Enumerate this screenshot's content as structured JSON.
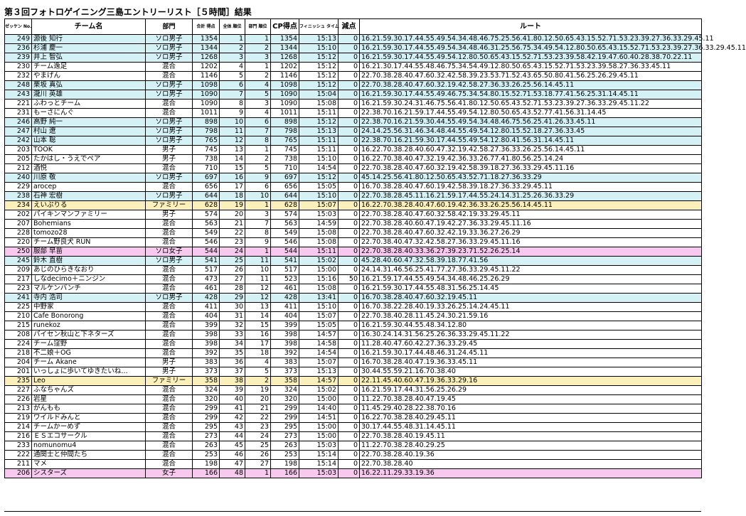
{
  "title": "第３回フォトロゲイニング三島エントリーリスト［５時間］結果",
  "headers": {
    "bib": "ゼッケン No.",
    "team": "チーム名",
    "category": "部門",
    "total": "合計 得点",
    "overall": "全体 順位",
    "division": "部門 順位",
    "cp": "CP得点",
    "finish": "フィニッシュ タイム",
    "penalty": "減点",
    "route": "ルート"
  },
  "rows": [
    [
      "249",
      "源後 知行",
      "ソロ男子",
      "1354",
      "1",
      "1",
      "1354",
      "15:13",
      "0",
      "16.21.59.30.17.44.55.49.54.34.48.46.75.25.56.41.80.12.50.65.43.15.52.71.53.23.39.27.36.33.29.45.11"
    ],
    [
      "236",
      "杉浦 慶一",
      "ソロ男子",
      "1344",
      "2",
      "2",
      "1344",
      "15:10",
      "0",
      "16.21.59.30.17.44.55.49.54.34.48.46.31.25.56.75.34.49.54.12.80.50.65.43.15.52.71.53.23.39.27.36.33.29.45.11"
    ],
    [
      "239",
      "井上 智弘",
      "ソロ男子",
      "1268",
      "3",
      "3",
      "1268",
      "15:12",
      "0",
      "16.21.59.30.17.44.55.49.54.12.80.50.65.43.15.52.71.53.23.39.58.42.19.47.60.40.28.38.70.22.11"
    ],
    [
      "230",
      "チーム逸足",
      "混合",
      "1202",
      "4",
      "1",
      "1202",
      "15:12",
      "0",
      "16.21.30.17.44.55.48.46.75.34.54.49.12.80.50.65.43.15.52.71.53.23.39.58.27.36.33.45.11"
    ],
    [
      "232",
      "やまげん",
      "混合",
      "1146",
      "5",
      "2",
      "1146",
      "15:12",
      "0",
      "22.70.38.28.40.47.60.32.42.58.39.23.53.71.52.43.65.50.80.41.56.25.26.29.45.11"
    ],
    [
      "248",
      "栗坂 真弘",
      "ソロ男子",
      "1098",
      "6",
      "4",
      "1098",
      "15:12",
      "0",
      "22.70.38.28.40.47.60.32.19.42.58.27.36.33.26.25.56.14.45.11"
    ],
    [
      "243",
      "瀧川 英雄",
      "ソロ男子",
      "1090",
      "7",
      "5",
      "1090",
      "15:04",
      "0",
      "16.21.59.30.17.44.55.49.46.75.34.54.80.15.52.71.53.18.77.41.56.25.31.14.45.11"
    ],
    [
      "221",
      "ふわっとチーム",
      "混合",
      "1090",
      "8",
      "3",
      "1090",
      "15:08",
      "0",
      "16.21.59.30.24.31.46.75.56.41.80.12.50.65.43.52.71.53.23.39.27.36.33.29.45.11.22"
    ],
    [
      "231",
      "もーさにんぐ",
      "混合",
      "1011",
      "9",
      "4",
      "1011",
      "15:11",
      "0",
      "22.38.70.16.21.59.17.44.55.49.54.12.80.50.65.43.52.77.41.56.31.14.45"
    ],
    [
      "246",
      "高野 純一",
      "ソロ男子",
      "898",
      "10",
      "6",
      "898",
      "15:12",
      "0",
      "22.38.70.16.21.59.30.44.55.49.54.34.48.46.75.56.25.41.26.33.45.11"
    ],
    [
      "247",
      "村山 遼",
      "ソロ男子",
      "798",
      "11",
      "7",
      "798",
      "15:13",
      "0",
      "24.14.25.56.31.46.34.48.44.55.49.54.12.80.15.52.18.27.36.33.45"
    ],
    [
      "242",
      "山本 聡",
      "ソロ男子",
      "765",
      "12",
      "8",
      "765",
      "15:11",
      "0",
      "22.38.70.16.21.59.30.17.44.55.49.54.12.80.41.56.31.14.45.11"
    ],
    [
      "203",
      "TOOK",
      "男子",
      "745",
      "13",
      "1",
      "745",
      "15:11",
      "0",
      "16.22.70.38.28.40.60.47.32.19.42.58.27.36.33.26.25.56.14.45.11"
    ],
    [
      "205",
      "たかはし・うえでペア",
      "男子",
      "738",
      "14",
      "2",
      "738",
      "15:10",
      "0",
      "16.22.70.38.40.47.32.19.42.36.33.26.77.41.80.56.25.14.24"
    ],
    [
      "212",
      "酒悦",
      "混合",
      "710",
      "15",
      "5",
      "710",
      "14:54",
      "0",
      "22.70.38.28.40.47.60.32.19.42.58.39.18.27.36.33.29.45.11.16"
    ],
    [
      "240",
      "川原 敬",
      "ソロ男子",
      "697",
      "16",
      "9",
      "697",
      "15:12",
      "0",
      "45.14.25.56.41.80.12.50.65.43.52.71.18.27.36.33.29"
    ],
    [
      "229",
      "arocep",
      "混合",
      "656",
      "17",
      "6",
      "656",
      "15:05",
      "0",
      "16.70.38.28.40.47.60.19.42.58.39.18.27.36.33.29.45.11"
    ],
    [
      "238",
      "石神 宏樹",
      "ソロ男子",
      "644",
      "18",
      "10",
      "644",
      "15:10",
      "0",
      "22.70.38.28.45.11.16.21.59.17.44.55.24.14.31.25.26.36.33.29"
    ],
    [
      "234",
      "えいぷりる",
      "ファミリー",
      "628",
      "19",
      "1",
      "628",
      "15:07",
      "0",
      "16.22.70.38.28.40.47.60.19.42.36.33.26.25.56.14.45.11"
    ],
    [
      "202",
      "パイキンマンファミリー",
      "男子",
      "574",
      "20",
      "3",
      "574",
      "15:03",
      "0",
      "22.70.38.28.40.47.60.32.58.42.19.33.29.45.11"
    ],
    [
      "207",
      "Bohemians",
      "混合",
      "563",
      "21",
      "7",
      "563",
      "14:59",
      "0",
      "22.70.38.28.40.60.47.19.42.27.36.33.29.45.11.16"
    ],
    [
      "228",
      "tomozo28",
      "混合",
      "549",
      "22",
      "8",
      "549",
      "15:08",
      "0",
      "22.70.38.28.40.47.60.32.42.19.33.36.27.26.29"
    ],
    [
      "220",
      "チーム野良犬 RUN",
      "混合",
      "546",
      "23",
      "9",
      "546",
      "15:08",
      "0",
      "22.70.38.40.47.32.42.58.27.36.33.29.45.11.16"
    ],
    [
      "250",
      "服部 早苗",
      "ソロ女子",
      "544",
      "24",
      "1",
      "544",
      "15:11",
      "0",
      "22.70.38.28.40.33.36.27.39.23.71.52.26.25.14"
    ],
    [
      "245",
      "鈴木 直樹",
      "ソロ男子",
      "541",
      "25",
      "11",
      "541",
      "15:02",
      "0",
      "45.28.40.60.47.32.58.39.18.77.41.56"
    ],
    [
      "209",
      "あじのひらきなおり",
      "混合",
      "517",
      "26",
      "10",
      "517",
      "15:00",
      "0",
      "24.14.31.46.56.25.41.77.27.36.33.29.45.11.22"
    ],
    [
      "217",
      "しなdecimo＋ニンジン",
      "混合",
      "473",
      "27",
      "11",
      "523",
      "15:16",
      "50",
      "16.21.59.17.44.55.49.54.34.48.46.25.26.29"
    ],
    [
      "223",
      "マルケンバンチ",
      "混合",
      "461",
      "28",
      "12",
      "461",
      "15:08",
      "0",
      "16.21.59.30.17.44.55.48.31.56.25.14.45"
    ],
    [
      "241",
      "寺内 浩司",
      "ソロ男子",
      "428",
      "29",
      "12",
      "428",
      "13:41",
      "0",
      "16.70.38.28.40.47.60.32.19.45.11"
    ],
    [
      "225",
      "中野家",
      "混合",
      "411",
      "30",
      "13",
      "411",
      "15:10",
      "0",
      "16.70.38.22.28.40.19.33.26.25.14.24.45.11"
    ],
    [
      "210",
      "Cafe Bonorong",
      "混合",
      "404",
      "31",
      "14",
      "404",
      "15:07",
      "0",
      "22.70.38.40.28.11.45.24.30.21.59.16"
    ],
    [
      "215",
      "runekoz",
      "混合",
      "399",
      "32",
      "15",
      "399",
      "15:05",
      "0",
      "16.21.59.30.44.55.48.34.12.80"
    ],
    [
      "208",
      "パイセン秋山と下ネターズ",
      "混合",
      "398",
      "33",
      "16",
      "398",
      "14:57",
      "0",
      "16.30.24.14.31.56.25.26.36.33.29.45.11.22"
    ],
    [
      "224",
      "チーム窪野",
      "混合",
      "398",
      "34",
      "17",
      "398",
      "14:58",
      "0",
      "11.28.40.47.60.42.27.36.33.29.45"
    ],
    [
      "218",
      "不二娘＋OG",
      "混合",
      "392",
      "35",
      "18",
      "392",
      "14:54",
      "0",
      "16.21.59.30.17.44.48.46.31.24.45.11"
    ],
    [
      "204",
      "チーム Akane",
      "男子",
      "383",
      "36",
      "4",
      "383",
      "15:07",
      "0",
      "16.70.38.28.40.47.19.36.33.45.11"
    ],
    [
      "201",
      "いっしょに歩いてゆきたいね…",
      "男子",
      "373",
      "37",
      "5",
      "373",
      "15:13",
      "0",
      "30.44.55.59.21.16.70.38.40"
    ],
    [
      "235",
      "Leo",
      "ファミリー",
      "358",
      "38",
      "2",
      "358",
      "14:57",
      "0",
      "22.11.45.40.60.47.19.36.33.29.16"
    ],
    [
      "227",
      "ふなちゃんズ",
      "混合",
      "324",
      "39",
      "19",
      "324",
      "15:02",
      "0",
      "16.21.59.17.44.31.56.25.26.29"
    ],
    [
      "226",
      "岩星",
      "混合",
      "320",
      "40",
      "20",
      "320",
      "15:00",
      "0",
      "11.22.70.38.28.40.47.19.45"
    ],
    [
      "213",
      "がんもも",
      "混合",
      "299",
      "41",
      "21",
      "299",
      "14:40",
      "0",
      "11.45.29.40.28.22.38.70.16"
    ],
    [
      "219",
      "ワイルドみんと",
      "混合",
      "299",
      "42",
      "22",
      "299",
      "14:51",
      "0",
      "16.22.70.38.28.40.29.45.11"
    ],
    [
      "214",
      "チームかーめず",
      "混合",
      "295",
      "43",
      "23",
      "295",
      "15:00",
      "0",
      "30.17.44.55.48.31.14.45.11"
    ],
    [
      "216",
      "ＥＳエコサークル",
      "混合",
      "273",
      "44",
      "24",
      "273",
      "15:00",
      "0",
      "22.70.38.28.40.19.45.11"
    ],
    [
      "233",
      "nomunomu4",
      "混合",
      "263",
      "45",
      "25",
      "263",
      "15:03",
      "0",
      "11.22.70.38.28.40.29.25"
    ],
    [
      "222",
      "通関士と仲間たち",
      "混合",
      "253",
      "46",
      "26",
      "253",
      "15:14",
      "0",
      "22.70.38.28.40.19.36"
    ],
    [
      "211",
      "マメ",
      "混合",
      "198",
      "47",
      "27",
      "198",
      "15:14",
      "0",
      "22.70.38.28.40"
    ],
    [
      "206",
      "シスターズ",
      "女子",
      "166",
      "48",
      "1",
      "166",
      "15:03",
      "0",
      "16.22.11.29.33.19.36"
    ]
  ],
  "row_colors": {
    "solo": "#d4f1f6",
    "family": "#fbf0b9",
    "women": "#f7c9ee"
  }
}
